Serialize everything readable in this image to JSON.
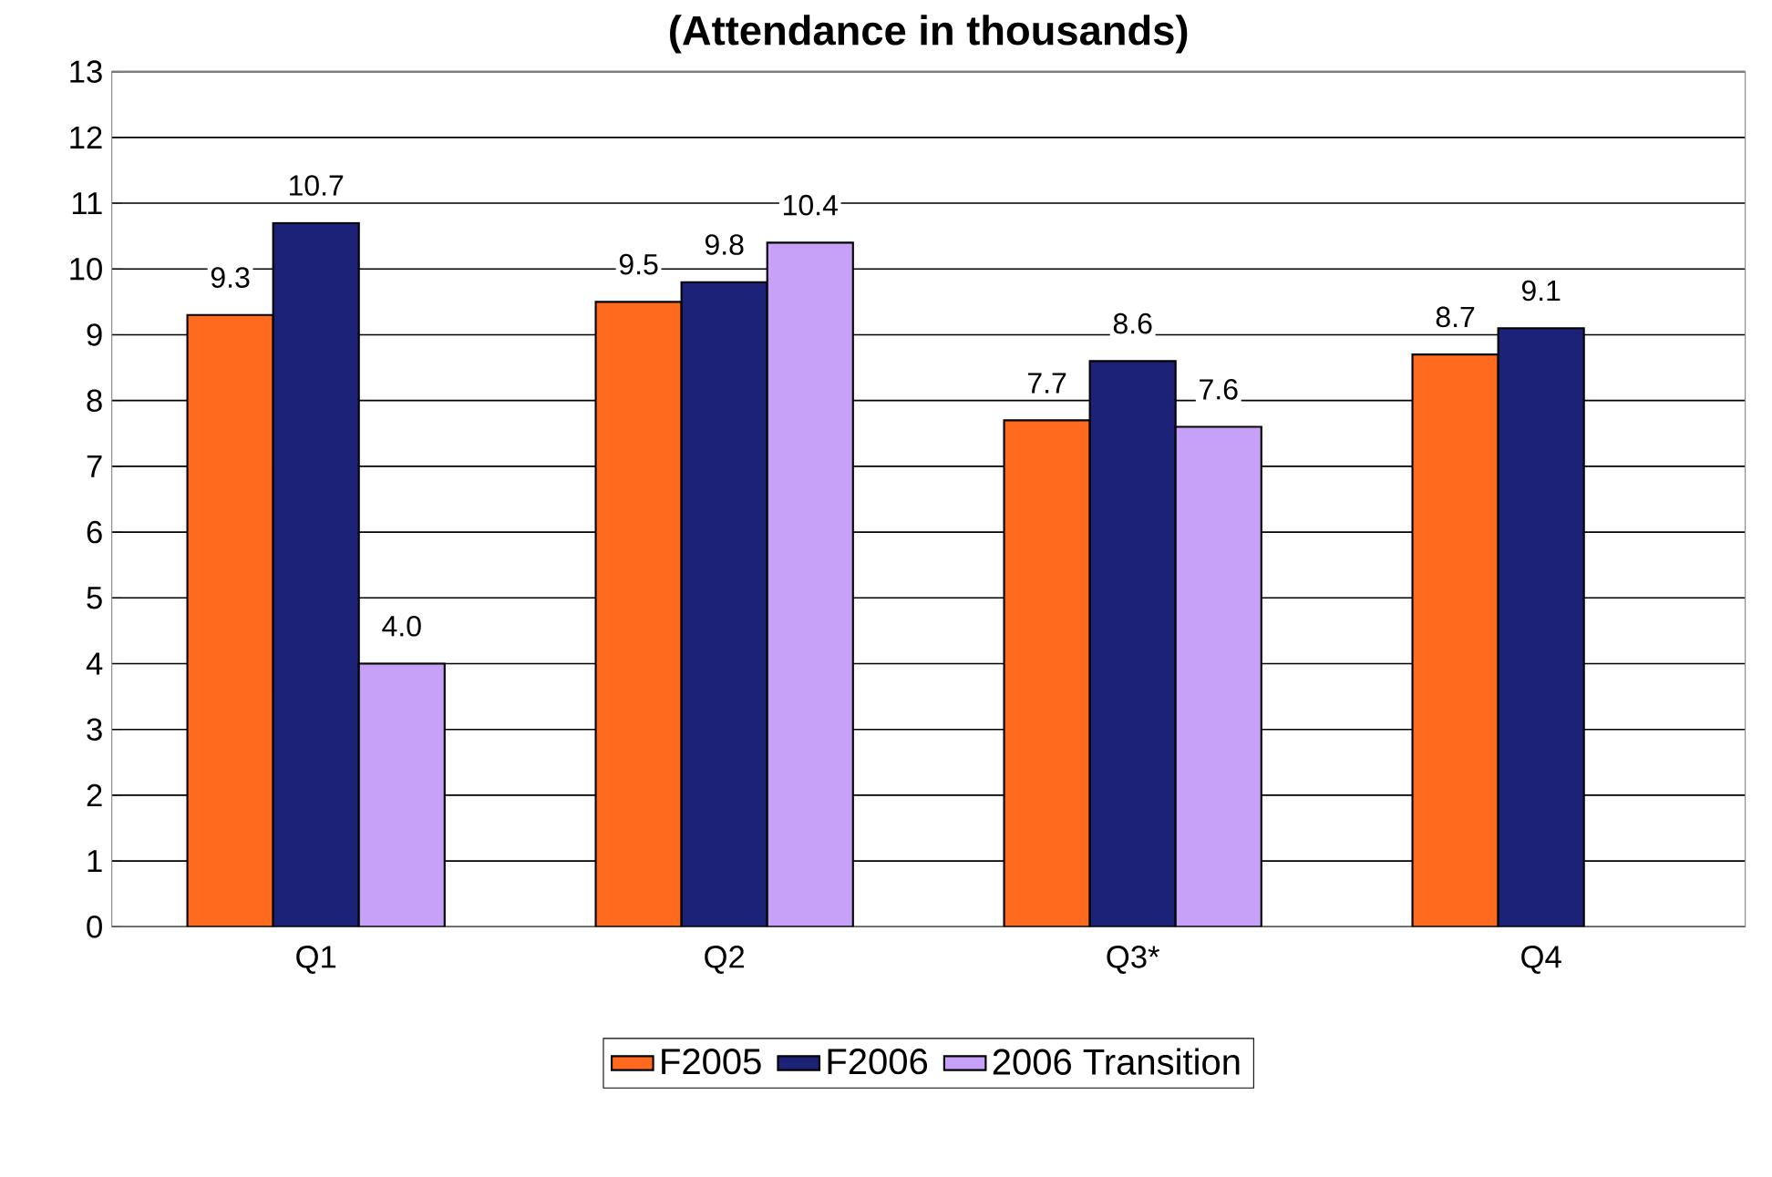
{
  "chart_data": {
    "type": "bar",
    "title": "(Attendance in thousands)",
    "categories": [
      "Q1",
      "Q2",
      "Q3*",
      "Q4"
    ],
    "series": [
      {
        "name": "F2005",
        "color": "#ff6a1f",
        "values": [
          9.3,
          9.5,
          7.7,
          8.7
        ],
        "value_labels": [
          "9.3",
          "9.5",
          "7.7",
          "8.7"
        ]
      },
      {
        "name": "F2006",
        "color": "#1c2278",
        "values": [
          10.7,
          9.8,
          8.6,
          9.1
        ],
        "value_labels": [
          "10.7",
          "9.8",
          "8.6",
          "9.1"
        ]
      },
      {
        "name": "2006 Transition",
        "color": "#c7a0f7",
        "values": [
          4.0,
          10.4,
          7.6,
          null
        ],
        "value_labels": [
          "4.0",
          "10.4",
          "7.6",
          null
        ]
      }
    ],
    "ylim": [
      0,
      13
    ],
    "yticks": [
      0,
      1,
      2,
      3,
      4,
      5,
      6,
      7,
      8,
      9,
      10,
      11,
      12,
      13
    ],
    "grid": "y",
    "legend": "bottom"
  }
}
